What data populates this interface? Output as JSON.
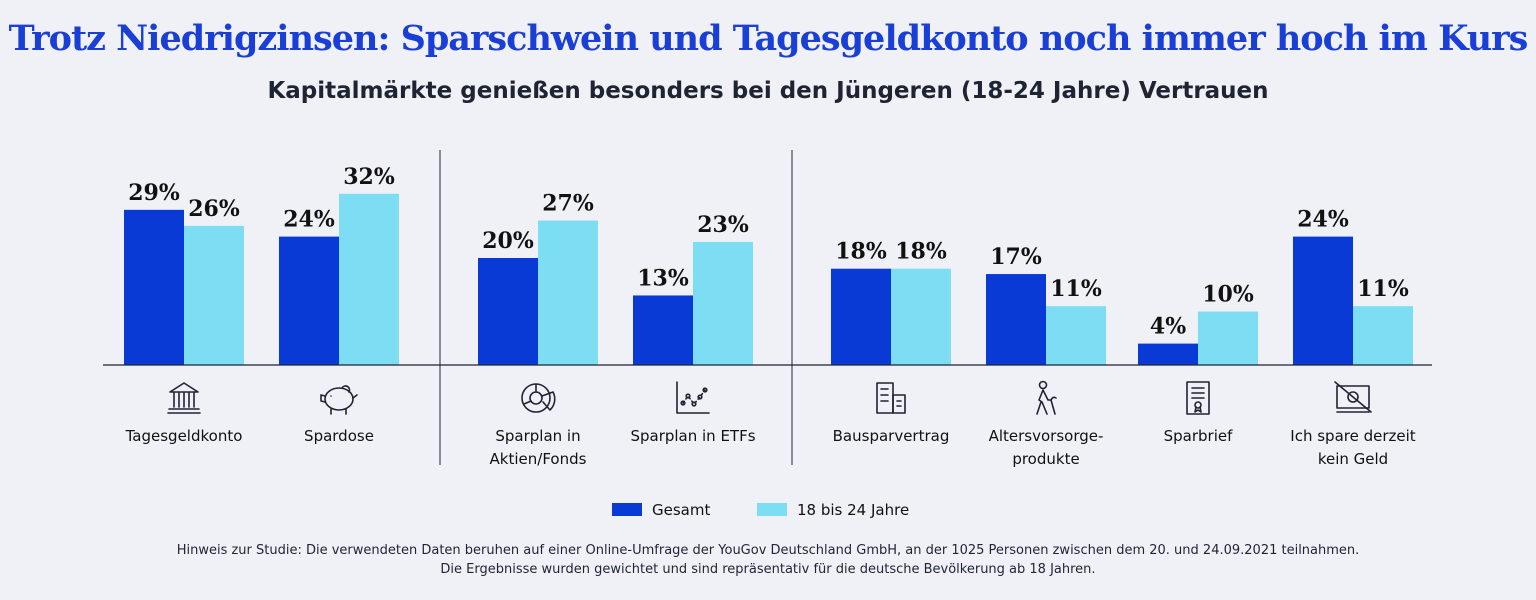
{
  "title": "Trotz Niedrigzinsen: Sparschwein und Tagesgeldkonto noch immer hoch im Kurs",
  "subtitle": "Kapitalmärkte genießen besonders bei den Jüngeren (18-24 Jahre) Vertrauen",
  "colors": {
    "gesamt": "#0a3ad6",
    "jung": "#7dddf2",
    "title": "#1a3fd6"
  },
  "chart_data": {
    "type": "bar",
    "categories": [
      {
        "label": "Tagesgeldkonto",
        "icon": "bank-icon"
      },
      {
        "label": "Spardose",
        "icon": "piggy-bank-icon"
      },
      {
        "label": "Sparplan in Aktien/Fonds",
        "lines": [
          "Sparplan in",
          "Aktien/Fonds"
        ],
        "icon": "pie-chart-icon"
      },
      {
        "label": "Sparplan in ETFs",
        "icon": "scatter-chart-icon"
      },
      {
        "label": "Bausparvertrag",
        "icon": "building-icon"
      },
      {
        "label": "Altersvorsorge-produkte",
        "lines": [
          "Altersvorsorge-",
          "produkte"
        ],
        "icon": "elderly-person-icon"
      },
      {
        "label": "Sparbrief",
        "icon": "certificate-icon"
      },
      {
        "label": "Ich spare derzeit kein Geld",
        "lines": [
          "Ich spare derzeit",
          "kein Geld"
        ],
        "icon": "no-money-icon"
      }
    ],
    "groups": [
      [
        0,
        1
      ],
      [
        2,
        3
      ],
      [
        4,
        5,
        6,
        7
      ]
    ],
    "series": [
      {
        "name": "Gesamt",
        "values": [
          29,
          24,
          20,
          13,
          18,
          17,
          4,
          24
        ]
      },
      {
        "name": "18 bis 24 Jahre",
        "values": [
          26,
          32,
          27,
          23,
          18,
          11,
          10,
          11
        ]
      }
    ],
    "value_suffix": "%",
    "ylim": [
      0,
      34
    ],
    "legend_position": "bottom"
  },
  "note": {
    "line1": "Hinweis zur Studie: Die verwendeten Daten beruhen auf einer Online-Umfrage der YouGov Deutschland GmbH, an der 1025 Personen zwischen dem 20. und 24.09.2021 teilnahmen.",
    "line2": "Die Ergebnisse wurden gewichtet und sind repräsentativ für die deutsche Bevölkerung ab 18 Jahren."
  }
}
